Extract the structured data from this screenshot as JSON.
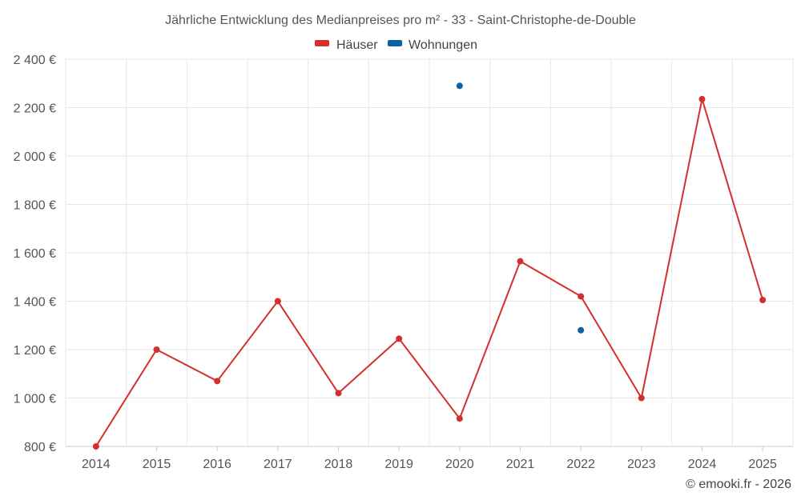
{
  "chart_data": {
    "type": "line",
    "title": "Jährliche Entwicklung des Medianpreises pro m² - 33 - Saint-Christophe-de-Double",
    "x": [
      "2014",
      "2015",
      "2016",
      "2017",
      "2018",
      "2019",
      "2020",
      "2021",
      "2022",
      "2023",
      "2024",
      "2025"
    ],
    "ylim": [
      800,
      2400
    ],
    "yticks": [
      800,
      1000,
      1200,
      1400,
      1600,
      1800,
      2000,
      2200,
      2400
    ],
    "ytick_labels": [
      "800 €",
      "1 000 €",
      "1 200 €",
      "1 400 €",
      "1 600 €",
      "1 800 €",
      "2 000 €",
      "2 200 €",
      "2 400 €"
    ],
    "grid": true,
    "legend_position": "top-center",
    "series": [
      {
        "name": "Häuser",
        "color": "#d32f2f",
        "values": [
          800,
          1200,
          1070,
          1400,
          1020,
          1245,
          915,
          1565,
          1420,
          1000,
          2235,
          1405
        ]
      },
      {
        "name": "Wohnungen",
        "color": "#0b63a5",
        "values": [
          null,
          null,
          null,
          null,
          null,
          null,
          2290,
          null,
          1280,
          null,
          null,
          null
        ]
      }
    ],
    "credit": "© emooki.fr - 2026"
  }
}
